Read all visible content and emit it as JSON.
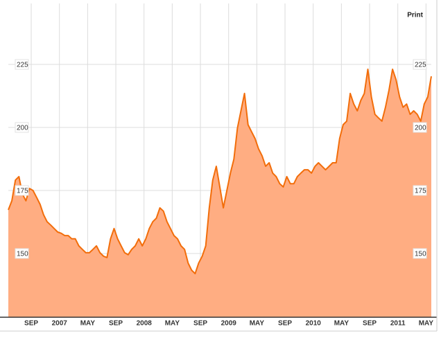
{
  "print_label": "Print",
  "chart_data": {
    "type": "area",
    "x": [
      -0.25,
      0.25,
      0.75,
      1.25,
      1.75,
      2.25,
      2.75,
      3.25,
      3.75,
      4.25,
      4.75,
      5.25,
      5.75,
      6.25,
      6.75,
      7.25,
      7.75,
      8.25,
      8.75,
      9.25,
      9.75,
      10.25,
      10.75,
      11.25,
      11.75,
      12.25,
      12.75,
      13.25,
      13.75,
      14.25,
      14.75,
      15.25,
      15.75,
      16.25,
      16.75,
      17.25,
      17.75,
      18.25,
      18.75,
      19.25,
      19.75,
      20.25,
      20.75,
      21.25,
      21.75,
      22.25,
      22.75,
      23.25,
      23.75,
      24.25,
      24.75,
      25.25,
      25.75,
      26.25,
      26.75,
      27.25,
      27.75,
      28.25,
      28.75,
      29.25,
      29.75,
      30.25,
      30.75,
      31.25,
      31.75,
      32.25,
      32.75,
      33.25,
      33.75,
      34.25,
      34.75,
      35.25,
      35.75,
      36.25,
      36.75,
      37.25,
      37.75,
      38.25,
      38.75,
      39.25,
      39.75,
      40.25,
      40.75,
      41.25,
      41.75,
      42.25,
      42.75,
      43.25,
      43.75,
      44.25,
      44.75,
      45.25,
      45.75,
      46.25,
      46.75,
      47.25,
      47.75,
      48.25,
      48.75,
      49.25,
      49.75,
      50.25,
      50.75,
      51.25,
      51.75,
      52.25,
      52.75,
      53.25,
      53.75,
      54.25,
      54.75,
      55.25,
      55.75,
      56.25,
      56.75,
      57.25,
      57.75,
      58.25,
      58.75,
      59.25,
      59.75
    ],
    "series": [
      {
        "color": "#f26d0a",
        "fill": "#ffad82",
        "values": [
          167.3,
          170.9,
          179.1,
          180.5,
          173.6,
          170.9,
          175.8,
          175.0,
          172.3,
          169.5,
          165.4,
          162.6,
          161.3,
          159.9,
          158.5,
          158.0,
          157.1,
          157.1,
          155.8,
          155.8,
          153.0,
          151.6,
          150.3,
          150.3,
          151.6,
          153.0,
          150.3,
          148.9,
          148.4,
          155.8,
          159.9,
          155.8,
          153.0,
          150.3,
          149.5,
          151.6,
          153.0,
          155.8,
          153.0,
          155.8,
          159.9,
          162.6,
          164.0,
          168.1,
          166.8,
          162.6,
          159.9,
          157.1,
          155.8,
          153.0,
          151.6,
          146.2,
          143.4,
          142.0,
          146.2,
          148.9,
          153.0,
          168.1,
          179.1,
          184.6,
          176.4,
          168.1,
          175.0,
          181.9,
          187.4,
          199.7,
          206.6,
          213.5,
          201.1,
          198.3,
          195.6,
          191.5,
          188.7,
          184.6,
          186.0,
          181.9,
          180.5,
          177.7,
          176.4,
          180.5,
          177.7,
          177.7,
          180.5,
          181.9,
          183.2,
          183.2,
          181.9,
          184.6,
          186.0,
          184.6,
          183.2,
          184.6,
          186.0,
          186.0,
          195.6,
          201.1,
          202.5,
          213.5,
          209.3,
          206.6,
          210.7,
          213.5,
          223.1,
          212.1,
          205.2,
          203.8,
          202.5,
          208.0,
          214.8,
          223.1,
          218.9,
          212.1,
          208.0,
          209.3,
          205.2,
          206.6,
          205.2,
          202.5,
          209.3,
          212.1,
          220.3
        ]
      }
    ],
    "xlim": [
      -0.25,
      59.75
    ],
    "ylim": [
      124.7,
      249.2
    ],
    "yticks": [
      150,
      175,
      200,
      225
    ],
    "xticks": [
      {
        "value": 3,
        "label": "SEP"
      },
      {
        "value": 7,
        "label": "2007"
      },
      {
        "value": 11,
        "label": "MAY"
      },
      {
        "value": 15,
        "label": "SEP"
      },
      {
        "value": 19,
        "label": "2008"
      },
      {
        "value": 23,
        "label": "MAY"
      },
      {
        "value": 27,
        "label": "SEP"
      },
      {
        "value": 31,
        "label": "2009"
      },
      {
        "value": 35,
        "label": "MAY"
      },
      {
        "value": 39,
        "label": "SEP"
      },
      {
        "value": 43,
        "label": "2010"
      },
      {
        "value": 47,
        "label": "MAY"
      },
      {
        "value": 51,
        "label": "SEP"
      },
      {
        "value": 55,
        "label": "2011"
      },
      {
        "value": 59,
        "label": "MAY"
      }
    ],
    "grid": true
  }
}
